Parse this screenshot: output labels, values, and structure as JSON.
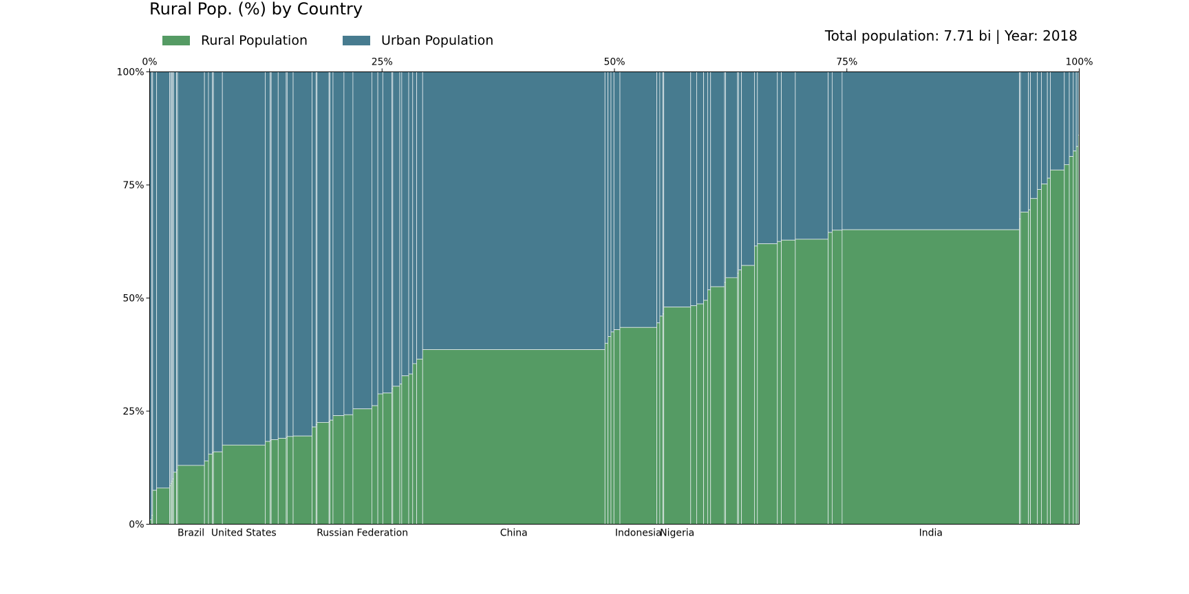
{
  "chart_data": {
    "type": "marimekko",
    "title": "Rural Pop. (%) by Country",
    "annotation": "Total population: 7.71 bi | Year: 2018",
    "x_axis": {
      "position": "top",
      "range_percent": [
        0,
        100
      ],
      "ticks": [
        "0%",
        "25%",
        "50%",
        "75%",
        "100%"
      ]
    },
    "y_axis": {
      "range_percent": [
        0,
        100
      ],
      "ticks": [
        "0%",
        "25%",
        "50%",
        "75%",
        "100%"
      ]
    },
    "legend": {
      "placement": "top-left",
      "items": [
        {
          "label": "Rural Population",
          "color": "#559b64"
        },
        {
          "label": "Urban Population",
          "color": "#477b8f"
        }
      ]
    },
    "colors": {
      "rural": "#559b64",
      "urban": "#477b8f",
      "separator": "#e8eef0"
    },
    "countries_note": "Bar widths are population shares (percent of world); bar heights are rural share (percent). Only labeled countries carry names.",
    "segments": [
      {
        "width": 0.2,
        "rural": 1
      },
      {
        "width": 0.1,
        "rural": 2
      },
      {
        "width": 0.4,
        "rural": 7.5
      },
      {
        "width": 1.3,
        "rural": 8
      },
      {
        "width": 0.1,
        "rural": 8.5
      },
      {
        "width": 0.1,
        "rural": 9
      },
      {
        "width": 0.1,
        "rural": 9.5
      },
      {
        "width": 0.1,
        "rural": 10
      },
      {
        "width": 0.3,
        "rural": 11.5
      },
      {
        "width": 0.1,
        "rural": 12
      },
      {
        "width": 2.7,
        "rural": 13,
        "name": "Brazil"
      },
      {
        "width": 0.4,
        "rural": 14
      },
      {
        "width": 0.4,
        "rural": 15.5
      },
      {
        "width": 0.1,
        "rural": 15.8
      },
      {
        "width": 0.9,
        "rural": 16
      },
      {
        "width": 4.3,
        "rural": 17.5,
        "name": "United States"
      },
      {
        "width": 0.5,
        "rural": 18.3
      },
      {
        "width": 0.1,
        "rural": 18.5
      },
      {
        "width": 0.7,
        "rural": 18.7
      },
      {
        "width": 0.8,
        "rural": 19
      },
      {
        "width": 0.1,
        "rural": 19.2
      },
      {
        "width": 0.6,
        "rural": 19.4
      },
      {
        "width": 1.9,
        "rural": 19.5
      },
      {
        "width": 0.4,
        "rural": 21.5
      },
      {
        "width": 0.1,
        "rural": 22
      },
      {
        "width": 1.2,
        "rural": 22.5
      },
      {
        "width": 0.1,
        "rural": 22.7
      },
      {
        "width": 0.3,
        "rural": 23
      },
      {
        "width": 1.1,
        "rural": 24
      },
      {
        "width": 0.9,
        "rural": 24.2
      },
      {
        "width": 1.9,
        "rural": 25.5,
        "name": "Russian Federation"
      },
      {
        "width": 0.6,
        "rural": 26.2
      },
      {
        "width": 0.5,
        "rural": 28.8
      },
      {
        "width": 0.9,
        "rural": 29
      },
      {
        "width": 0.1,
        "rural": 30
      },
      {
        "width": 0.7,
        "rural": 30.5
      },
      {
        "width": 0.2,
        "rural": 31
      },
      {
        "width": 0.7,
        "rural": 32.8
      },
      {
        "width": 0.4,
        "rural": 33.2
      },
      {
        "width": 0.4,
        "rural": 35.5
      },
      {
        "width": 0.6,
        "rural": 36.5
      },
      {
        "width": 18.3,
        "rural": 38.6,
        "name": "China"
      },
      {
        "width": 0.3,
        "rural": 40
      },
      {
        "width": 0.3,
        "rural": 41.5
      },
      {
        "width": 0.3,
        "rural": 42.5
      },
      {
        "width": 0.6,
        "rural": 43
      },
      {
        "width": 3.7,
        "rural": 43.5,
        "name": "Indonesia"
      },
      {
        "width": 0.3,
        "rural": 44.5
      },
      {
        "width": 0.3,
        "rural": 46
      },
      {
        "width": 0.1,
        "rural": 46.5
      },
      {
        "width": 2.7,
        "rural": 48,
        "name": "Nigeria"
      },
      {
        "width": 0.6,
        "rural": 48.3
      },
      {
        "width": 0.7,
        "rural": 48.7
      },
      {
        "width": 0.4,
        "rural": 49.5
      },
      {
        "width": 0.3,
        "rural": 51.8
      },
      {
        "width": 1.4,
        "rural": 52.5
      },
      {
        "width": 0.1,
        "rural": 53.5
      },
      {
        "width": 1.2,
        "rural": 54.5
      },
      {
        "width": 0.1,
        "rural": 55.5
      },
      {
        "width": 0.3,
        "rural": 56.2
      },
      {
        "width": 1.3,
        "rural": 57.2
      },
      {
        "width": 0.3,
        "rural": 61.5
      },
      {
        "width": 2.0,
        "rural": 62
      },
      {
        "width": 0.4,
        "rural": 62.5
      },
      {
        "width": 1.4,
        "rural": 62.8
      },
      {
        "width": 3.3,
        "rural": 63
      },
      {
        "width": 0.4,
        "rural": 64.5
      },
      {
        "width": 1.0,
        "rural": 65
      },
      {
        "width": 17.8,
        "rural": 65.1,
        "name": "India"
      },
      {
        "width": 0.1,
        "rural": 67.5
      },
      {
        "width": 0.8,
        "rural": 69
      },
      {
        "width": 0.2,
        "rural": 69.5
      },
      {
        "width": 0.7,
        "rural": 72
      },
      {
        "width": 0.4,
        "rural": 74
      },
      {
        "width": 0.6,
        "rural": 75.2
      },
      {
        "width": 0.3,
        "rural": 76.5
      },
      {
        "width": 1.4,
        "rural": 78.3
      },
      {
        "width": 0.5,
        "rural": 79.5
      },
      {
        "width": 0.4,
        "rural": 81.3
      },
      {
        "width": 0.3,
        "rural": 82.5
      },
      {
        "width": 0.2,
        "rural": 83.5
      },
      {
        "width": 0.1,
        "rural": 86
      }
    ]
  }
}
